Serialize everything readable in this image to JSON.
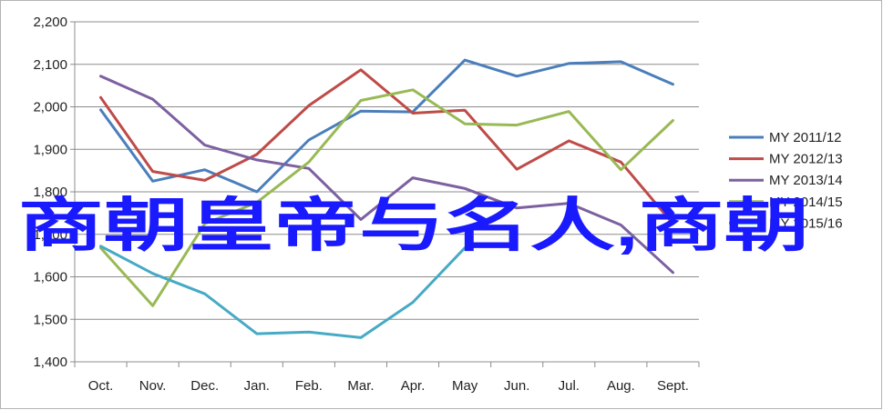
{
  "chart_data": {
    "type": "line",
    "categories": [
      "Oct.",
      "Nov.",
      "Dec.",
      "Jan.",
      "Feb.",
      "Mar.",
      "Apr.",
      "May",
      "Jun.",
      "Jul.",
      "Aug.",
      "Sept."
    ],
    "ylim": [
      1400,
      2200
    ],
    "yticks": [
      1400,
      1500,
      1600,
      1700,
      1800,
      1900,
      2000,
      2100,
      2200
    ],
    "ytick_labels": [
      "1,400",
      "1,500",
      "1,600",
      "1,700",
      "1,800",
      "1,900",
      "2,000",
      "2,100",
      "2,200"
    ],
    "grid": "horizontal",
    "legend_position": "right",
    "series": [
      {
        "name": "MY 2011/12",
        "color": "#4a7ebb",
        "values": [
          1993,
          1825,
          1852,
          1800,
          1922,
          1990,
          1988,
          2110,
          2072,
          2102,
          2106,
          2053
        ]
      },
      {
        "name": "MY 2012/13",
        "color": "#be4b48",
        "values": [
          2022,
          1848,
          1827,
          1888,
          2003,
          2087,
          1985,
          1992,
          1853,
          1920,
          1870,
          1725
        ]
      },
      {
        "name": "MY 2013/14",
        "color": "#7d60a0",
        "values": [
          2072,
          2018,
          1910,
          1875,
          1855,
          1735,
          1833,
          1808,
          1762,
          1773,
          1722,
          1610
        ]
      },
      {
        "name": "MY 2014/15",
        "color": "#98b954",
        "values": [
          1668,
          1532,
          1725,
          1775,
          1870,
          2015,
          2040,
          1960,
          1957,
          1989,
          1852,
          1968
        ]
      },
      {
        "name": "MY 2015/16",
        "color": "#46aac5",
        "values": [
          1672,
          1608,
          1560,
          1466,
          1470,
          1457,
          1540,
          1668,
          null,
          null,
          null,
          null
        ]
      }
    ]
  },
  "overlay": {
    "text": "商朝皇帝与名人,商朝",
    "color": "#1a1aff"
  }
}
